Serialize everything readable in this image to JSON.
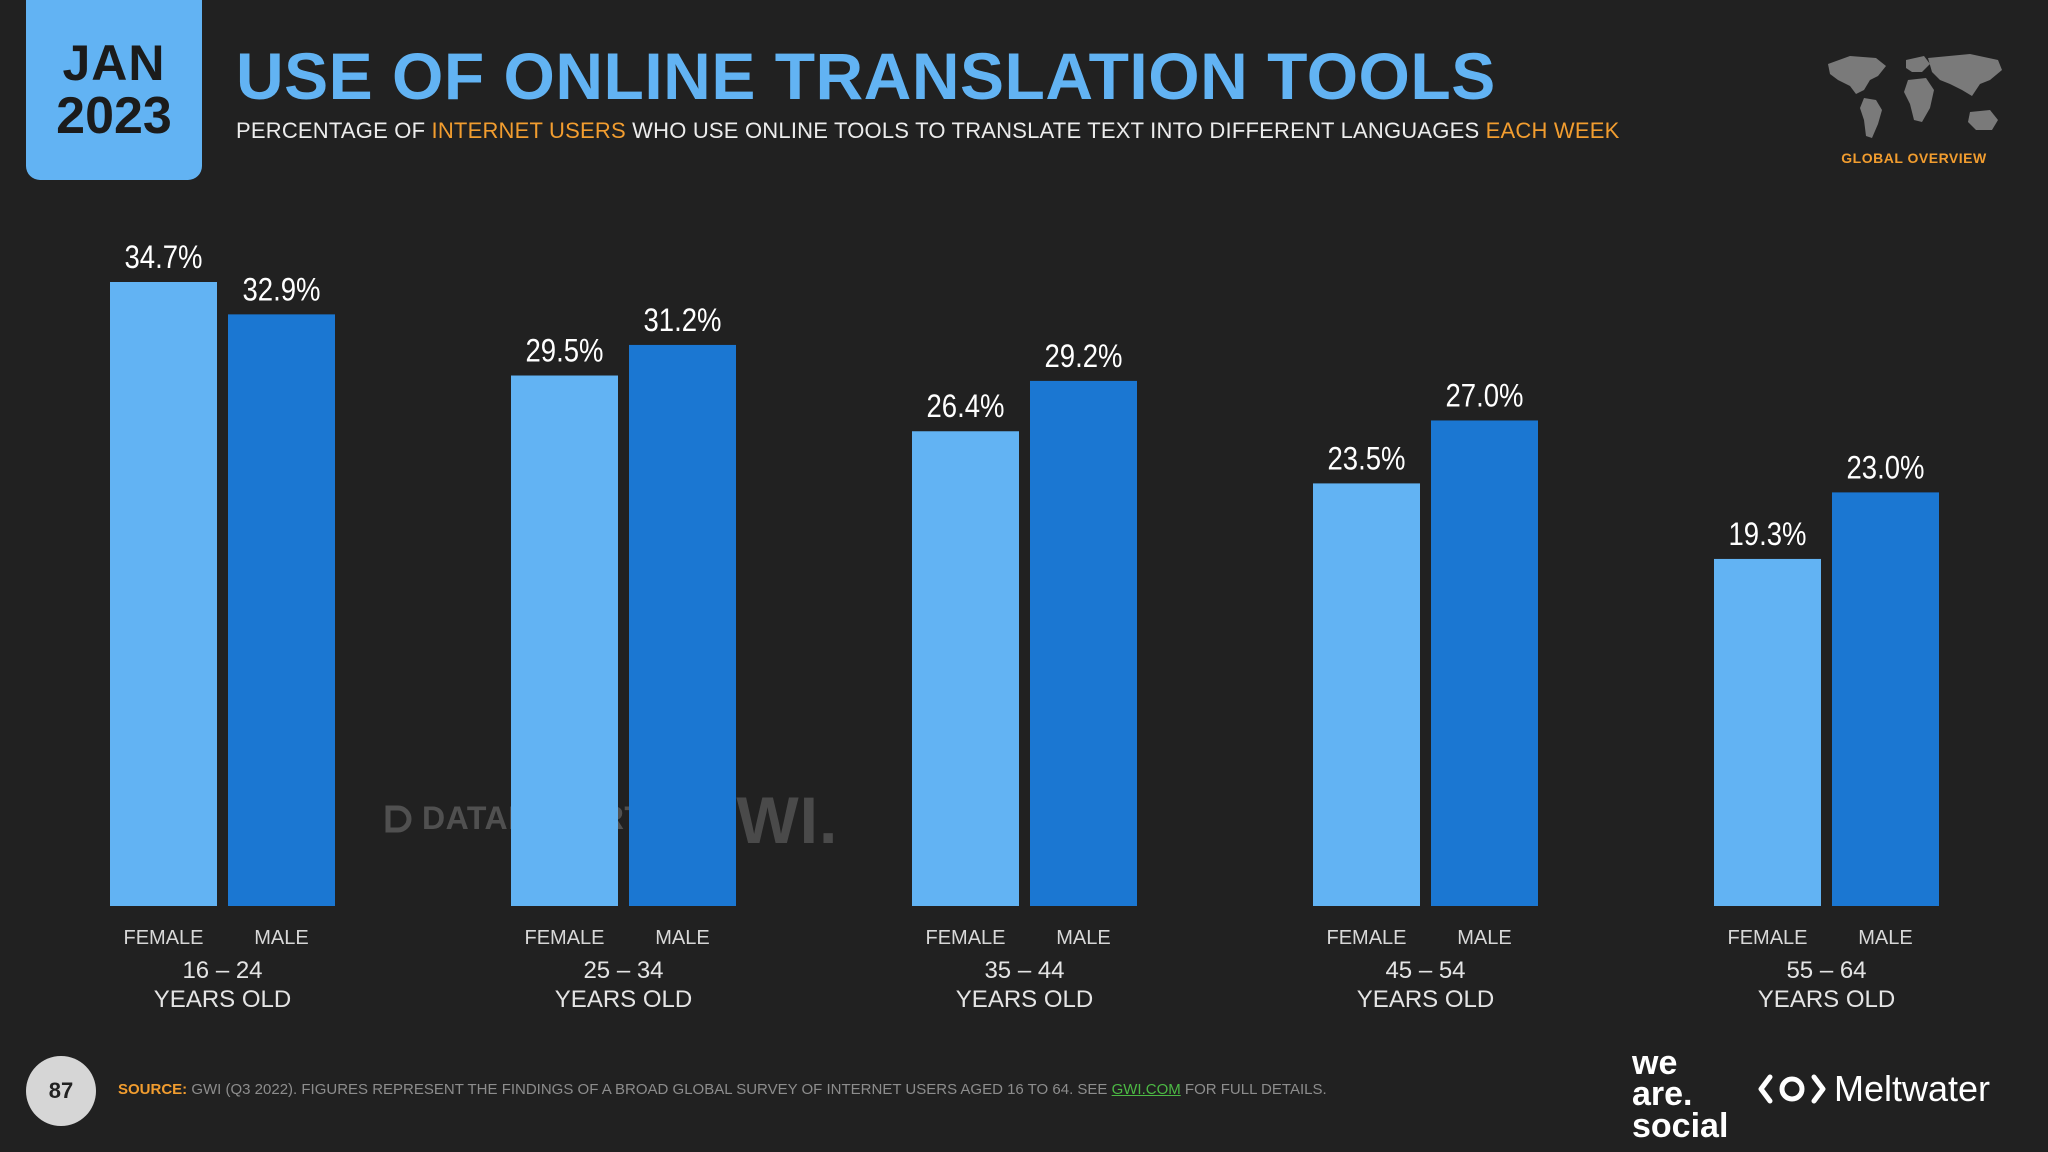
{
  "header": {
    "date_month": "JAN",
    "date_year": "2023",
    "title": "USE OF ONLINE TRANSLATION TOOLS",
    "subtitle_parts": [
      "PERCENTAGE OF ",
      "INTERNET USERS",
      " WHO USE ONLINE TOOLS TO TRANSLATE TEXT INTO DIFFERENT LANGUAGES ",
      "EACH WEEK"
    ],
    "badge_label": "GLOBAL OVERVIEW"
  },
  "watermarks": {
    "datareportal": "DATAREPORTAL",
    "gwi": "GWI."
  },
  "footer": {
    "page_number": "87",
    "source_label": "SOURCE:",
    "source_text": " GWI (Q3 2022). FIGURES REPRESENT THE FINDINGS OF A BROAD GLOBAL SURVEY OF INTERNET USERS AGED 16 TO 64. SEE ",
    "source_link": "GWI.COM",
    "source_tail": " FOR FULL DETAILS.",
    "logo_we": "we",
    "logo_are": "are.",
    "logo_social": "social",
    "logo_meltwater": "Meltwater"
  },
  "colors": {
    "female": "#62b3f3",
    "male": "#1b77d2",
    "accent": "#f29d2f",
    "title": "#62b3f3"
  },
  "chart_data": {
    "type": "bar",
    "categories": [
      "16 – 24 YEARS OLD",
      "25 – 34 YEARS OLD",
      "35 – 44 YEARS OLD",
      "45 – 54 YEARS OLD",
      "55 – 64 YEARS OLD"
    ],
    "category_lines": [
      [
        "16 – 24",
        "YEARS OLD"
      ],
      [
        "25 – 34",
        "YEARS OLD"
      ],
      [
        "35 – 44",
        "YEARS OLD"
      ],
      [
        "45 – 54",
        "YEARS OLD"
      ],
      [
        "55 – 64",
        "YEARS OLD"
      ]
    ],
    "series": [
      {
        "name": "FEMALE",
        "values": [
          34.7,
          29.5,
          26.4,
          23.5,
          19.3
        ],
        "labels": [
          "34.7%",
          "29.5%",
          "26.4%",
          "23.5%",
          "19.3%"
        ]
      },
      {
        "name": "MALE",
        "values": [
          32.9,
          31.2,
          29.2,
          27.0,
          23.0
        ],
        "labels": [
          "32.9%",
          "31.2%",
          "29.2%",
          "27.0%",
          "23.0%"
        ]
      }
    ],
    "value_unit": "%",
    "title": "USE OF ONLINE TRANSLATION TOOLS",
    "xlabel": "",
    "ylabel": "",
    "ylim": [
      0,
      34.7
    ],
    "grid": false
  }
}
